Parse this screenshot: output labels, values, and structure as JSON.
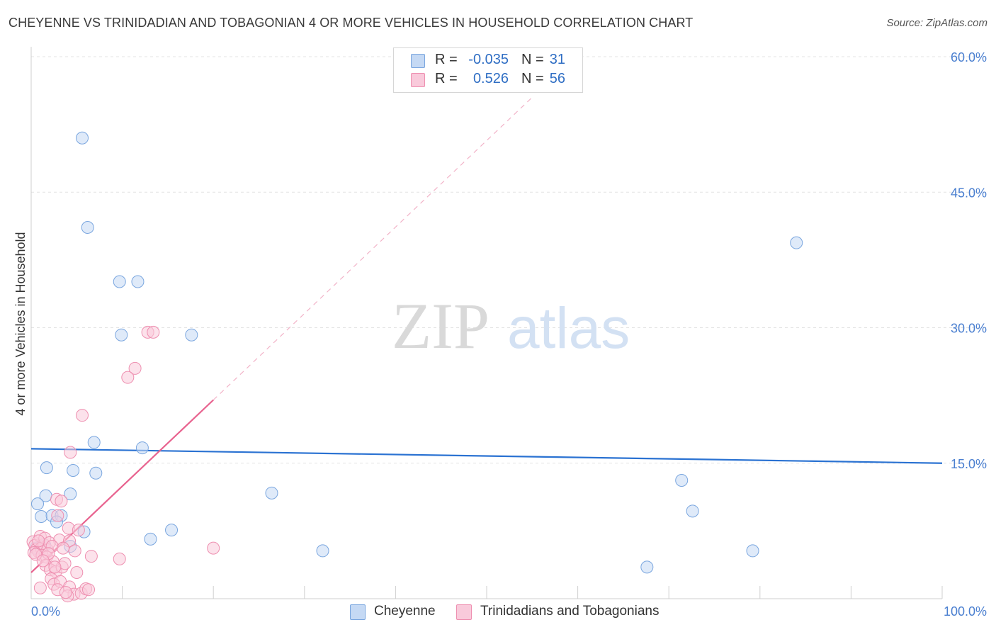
{
  "title": "CHEYENNE VS TRINIDADIAN AND TOBAGONIAN 4 OR MORE VEHICLES IN HOUSEHOLD CORRELATION CHART",
  "source": "Source: ZipAtlas.com",
  "watermark": {
    "zip": "ZIP",
    "atlas": "atlas"
  },
  "legend": {
    "rows": [
      {
        "r_label": "R =",
        "r_value": "-0.035",
        "n_label": "N =",
        "n_value": "31"
      },
      {
        "r_label": "R =",
        "r_value": "0.526",
        "n_label": "N =",
        "n_value": "56"
      }
    ]
  },
  "bottom_legend": [
    "Cheyenne",
    "Trinidadians and Tobagonians"
  ],
  "colors": {
    "blue_fill": "#c5d9f4",
    "blue_stroke": "#7aa6df",
    "blue_line": "#2a72d2",
    "pink_fill": "#f9cadb",
    "pink_stroke": "#ee8fb0",
    "pink_line": "#e8638f",
    "tick_label": "#4a7fd0",
    "grid": "#e3e3e3"
  },
  "chart_data": {
    "type": "scatter",
    "ylabel": "4 or more Vehicles in Household",
    "xlim": [
      0,
      100
    ],
    "ylim": [
      0,
      60
    ],
    "x_tick_labels": [
      {
        "value": 0,
        "label": "0.0%"
      },
      {
        "value": 100,
        "label": "100.0%"
      }
    ],
    "y_tick_labels": [
      {
        "value": 15,
        "label": "15.0%"
      },
      {
        "value": 30,
        "label": "30.0%"
      },
      {
        "value": 45,
        "label": "45.0%"
      },
      {
        "value": 60,
        "label": "60.0%"
      }
    ],
    "legend_position": "top-center",
    "grid": true,
    "series": [
      {
        "name": "Cheyenne",
        "color": "#7aa6df",
        "points": [
          [
            5.6,
            51.0
          ],
          [
            6.2,
            41.1
          ],
          [
            9.7,
            35.1
          ],
          [
            11.7,
            35.1
          ],
          [
            9.9,
            29.2
          ],
          [
            17.6,
            29.2
          ],
          [
            1.7,
            14.5
          ],
          [
            4.6,
            14.2
          ],
          [
            7.1,
            13.9
          ],
          [
            6.9,
            17.3
          ],
          [
            12.2,
            16.7
          ],
          [
            1.6,
            11.4
          ],
          [
            4.3,
            11.6
          ],
          [
            0.7,
            10.5
          ],
          [
            1.1,
            9.1
          ],
          [
            2.3,
            9.2
          ],
          [
            3.3,
            9.2
          ],
          [
            2.8,
            8.5
          ],
          [
            5.8,
            7.4
          ],
          [
            4.3,
            5.8
          ],
          [
            13.1,
            6.6
          ],
          [
            15.4,
            7.6
          ],
          [
            26.4,
            11.7
          ],
          [
            32.0,
            5.3
          ],
          [
            67.6,
            3.5
          ],
          [
            71.4,
            13.1
          ],
          [
            72.6,
            9.7
          ],
          [
            79.2,
            5.3
          ],
          [
            84.0,
            39.4
          ],
          [
            0.5,
            5.6
          ],
          [
            1.5,
            5.9
          ]
        ],
        "trend": {
          "x": [
            0,
            100
          ],
          "y": [
            16.6,
            15.0
          ]
        }
      },
      {
        "name": "Trinidadians and Tobagonians",
        "color": "#ee8fb0",
        "points": [
          [
            12.8,
            29.5
          ],
          [
            13.4,
            29.5
          ],
          [
            11.4,
            25.5
          ],
          [
            10.6,
            24.5
          ],
          [
            5.6,
            20.3
          ],
          [
            4.3,
            16.2
          ],
          [
            2.8,
            11.0
          ],
          [
            3.3,
            10.8
          ],
          [
            2.9,
            9.2
          ],
          [
            3.1,
            6.5
          ],
          [
            4.2,
            6.4
          ],
          [
            4.1,
            7.8
          ],
          [
            5.2,
            7.6
          ],
          [
            4.8,
            5.3
          ],
          [
            20.0,
            5.6
          ],
          [
            9.7,
            4.4
          ],
          [
            6.6,
            4.7
          ],
          [
            0.2,
            6.3
          ],
          [
            0.4,
            5.9
          ],
          [
            0.6,
            5.5
          ],
          [
            0.8,
            5.2
          ],
          [
            1.1,
            5.6
          ],
          [
            1.4,
            6.0
          ],
          [
            1.8,
            5.4
          ],
          [
            0.3,
            5.1
          ],
          [
            1.0,
            6.9
          ],
          [
            1.5,
            6.7
          ],
          [
            2.0,
            6.2
          ],
          [
            2.3,
            5.8
          ],
          [
            3.5,
            5.6
          ],
          [
            1.2,
            4.8
          ],
          [
            1.7,
            4.6
          ],
          [
            2.4,
            4.1
          ],
          [
            1.6,
            3.7
          ],
          [
            2.1,
            3.2
          ],
          [
            2.7,
            3.0
          ],
          [
            3.4,
            3.5
          ],
          [
            3.7,
            3.9
          ],
          [
            5.0,
            2.9
          ],
          [
            2.2,
            2.2
          ],
          [
            2.5,
            1.6
          ],
          [
            3.2,
            1.9
          ],
          [
            4.2,
            1.3
          ],
          [
            1.0,
            1.2
          ],
          [
            4.7,
            0.5
          ],
          [
            5.5,
            0.6
          ],
          [
            6.0,
            1.1
          ],
          [
            6.3,
            1.0
          ],
          [
            4.0,
            0.3
          ],
          [
            2.9,
            1.0
          ],
          [
            0.5,
            4.9
          ],
          [
            1.9,
            5.0
          ],
          [
            3.8,
            0.7
          ],
          [
            2.6,
            3.5
          ],
          [
            0.8,
            6.4
          ],
          [
            1.3,
            4.2
          ]
        ],
        "trend": {
          "x": [
            0,
            20
          ],
          "y": [
            2.9,
            22.0
          ]
        },
        "trend_extension": {
          "x": [
            20,
            55
          ],
          "y": [
            22.0,
            55.5
          ]
        }
      }
    ]
  }
}
